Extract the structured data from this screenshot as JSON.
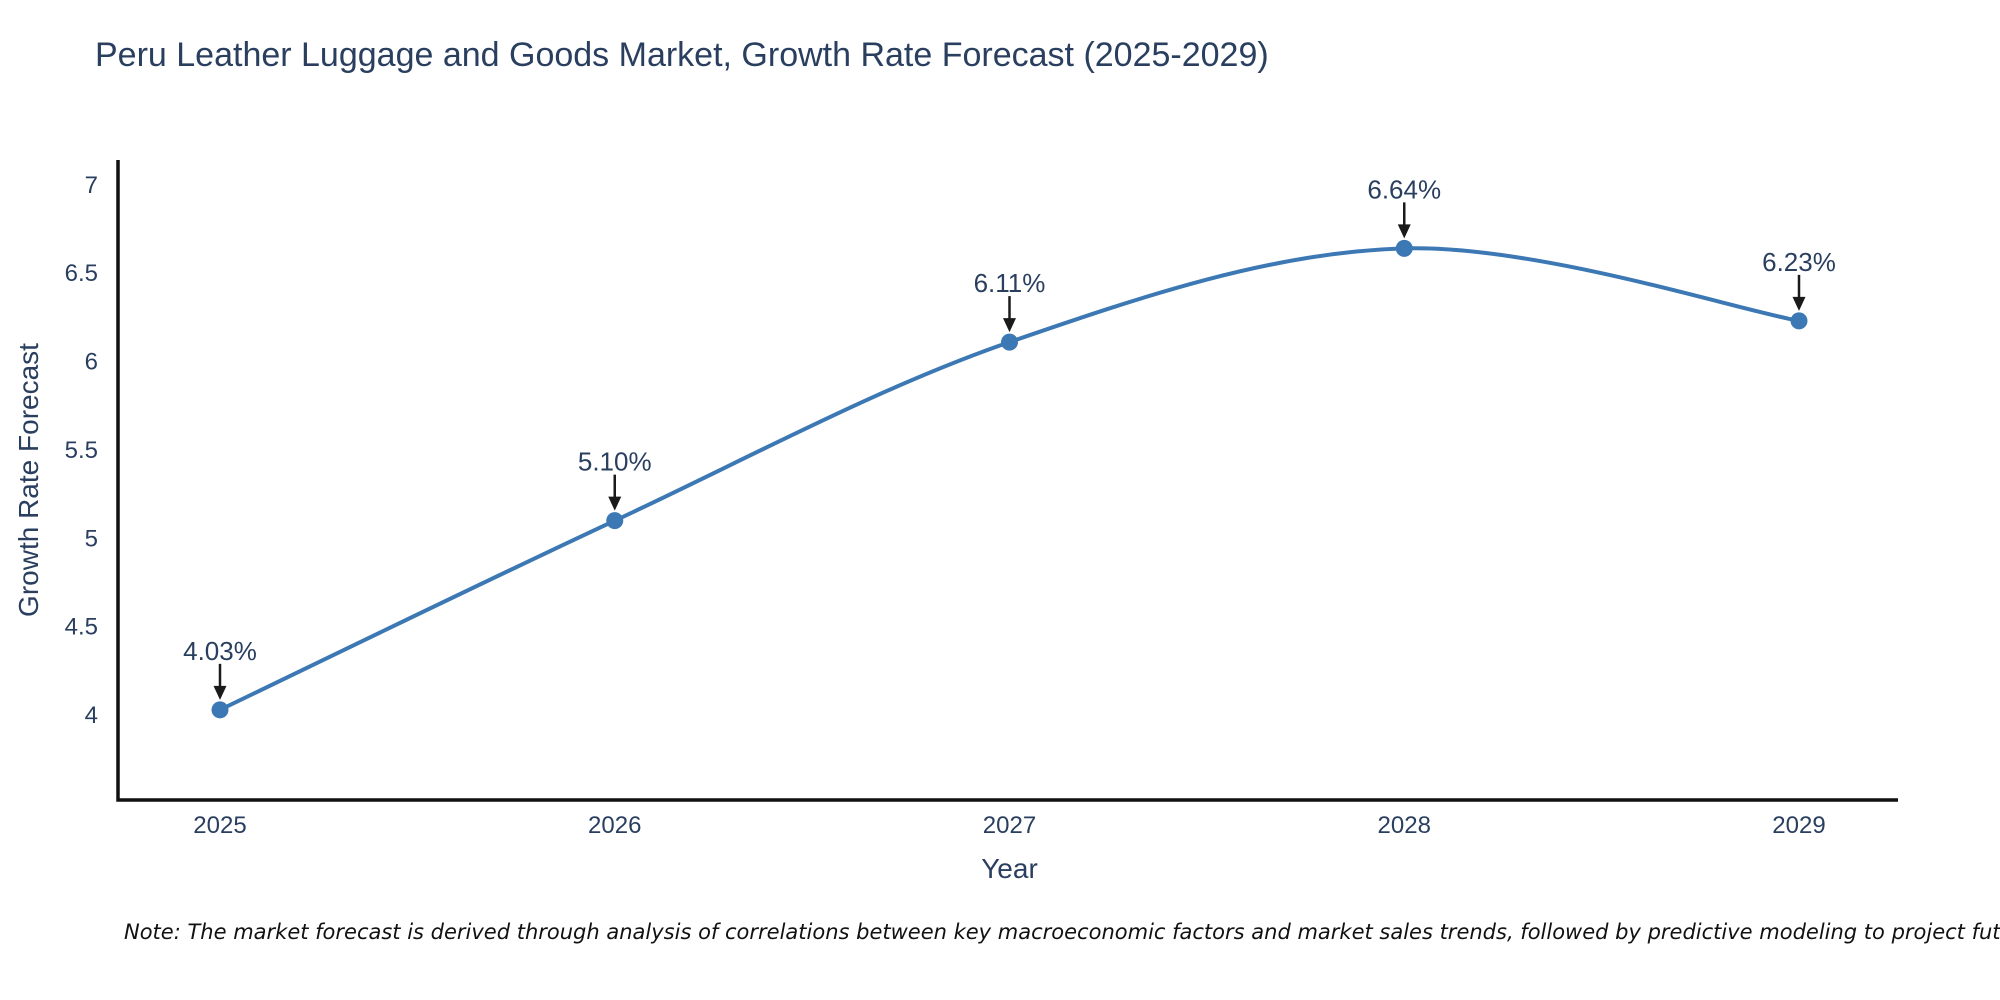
{
  "title": "Peru Leather Luggage and Goods Market, Growth Rate Forecast (2025-2029)",
  "note": "Note: The market forecast is derived through analysis of correlations between key macroeconomic factors and market sales trends, followed by predictive modeling to project future sales",
  "chart_data": {
    "type": "line",
    "x": [
      2025,
      2026,
      2027,
      2028,
      2029
    ],
    "x_tick_labels": [
      "2025",
      "2026",
      "2027",
      "2028",
      "2029"
    ],
    "series": [
      {
        "name": "Growth Rate Forecast",
        "values": [
          4.03,
          5.1,
          6.11,
          6.64,
          6.23
        ],
        "point_labels": [
          "4.03%",
          "5.10%",
          "6.11%",
          "6.64%",
          "6.23%"
        ]
      }
    ],
    "xlabel": "Year",
    "ylabel": "Growth Rate Forecast",
    "y_tick_labels": [
      "4",
      "4.5",
      "5",
      "5.5",
      "6",
      "6.5",
      "7"
    ],
    "ylim": [
      3.52,
      7.14
    ],
    "grid": false,
    "legend_position": "none",
    "line_shape": "spline",
    "annotations_have_arrows": true,
    "colors": {
      "line": "#3c78b4",
      "marker": "#3c78b4",
      "axis": "#111111",
      "text": "#2a3f5f",
      "arrow": "#1a1a1a",
      "note_text": "#111111",
      "background": "#ffffff"
    }
  }
}
